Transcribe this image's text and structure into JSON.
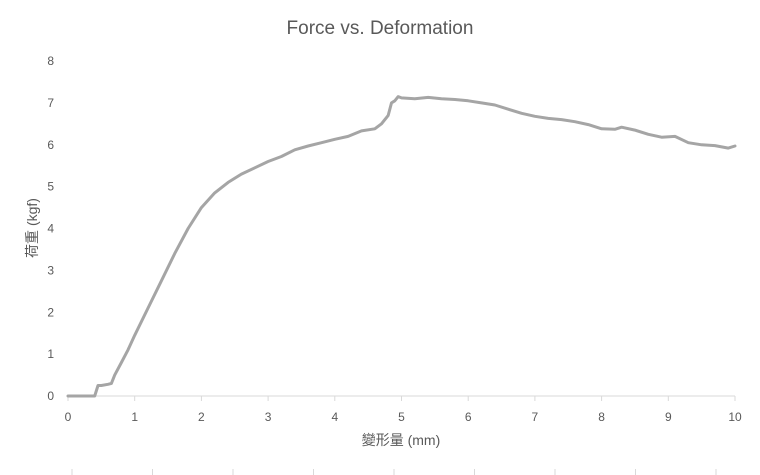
{
  "chart_data": {
    "type": "line",
    "title": "Force vs. Deformation",
    "xlabel": "變形量 (mm)",
    "ylabel": "荷重 (kgf)",
    "xlim": [
      0,
      10
    ],
    "ylim": [
      0,
      8
    ],
    "xticks": [
      "0",
      "1",
      "2",
      "3",
      "4",
      "5",
      "6",
      "7",
      "8",
      "9",
      "10"
    ],
    "yticks": [
      "0",
      "1",
      "2",
      "3",
      "4",
      "5",
      "6",
      "7",
      "8"
    ],
    "grid": false,
    "legend": "none",
    "line_color": "#a5a5a5",
    "series": [
      {
        "x": [
          0,
          0.4,
          0.45,
          0.5,
          0.6,
          0.65,
          0.7,
          0.8,
          0.9,
          1.0,
          1.2,
          1.4,
          1.6,
          1.8,
          2.0,
          2.2,
          2.4,
          2.6,
          2.8,
          3.0,
          3.2,
          3.4,
          3.6,
          3.8,
          4.0,
          4.2,
          4.4,
          4.6,
          4.7,
          4.8,
          4.85,
          4.9,
          4.95,
          5.0,
          5.2,
          5.4,
          5.6,
          5.8,
          6.0,
          6.2,
          6.4,
          6.6,
          6.8,
          7.0,
          7.2,
          7.4,
          7.6,
          7.8,
          8.0,
          8.2,
          8.3,
          8.5,
          8.7,
          8.9,
          9.1,
          9.3,
          9.5,
          9.7,
          9.9,
          10.0
        ],
        "y": [
          0,
          0,
          0.25,
          0.25,
          0.28,
          0.3,
          0.5,
          0.8,
          1.1,
          1.45,
          2.1,
          2.75,
          3.4,
          4.0,
          4.5,
          4.85,
          5.1,
          5.3,
          5.45,
          5.6,
          5.72,
          5.88,
          5.97,
          6.05,
          6.13,
          6.2,
          6.33,
          6.38,
          6.5,
          6.7,
          7.0,
          7.05,
          7.15,
          7.12,
          7.1,
          7.13,
          7.1,
          7.08,
          7.05,
          7.0,
          6.95,
          6.85,
          6.75,
          6.68,
          6.63,
          6.6,
          6.55,
          6.48,
          6.38,
          6.37,
          6.42,
          6.35,
          6.25,
          6.18,
          6.2,
          6.05,
          6.0,
          5.98,
          5.92,
          5.97
        ]
      }
    ]
  }
}
